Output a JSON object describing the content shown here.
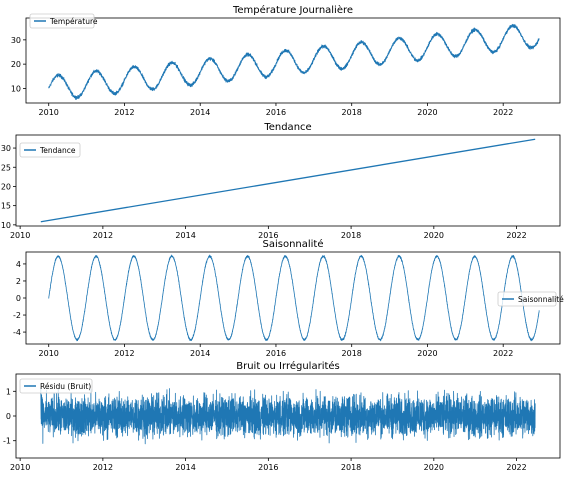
{
  "chart_data": [
    {
      "type": "line",
      "title": "Température Journalière",
      "series": [
        {
          "name": "Température",
          "color": "#1f77b4",
          "components": {
            "trend_start": 10,
            "trend_slope_per_year": 1.7,
            "seasonal_amplitude": 5,
            "noise_amplitude": 1
          },
          "x_range": [
            2010.0,
            2022.95
          ]
        }
      ],
      "xlim": [
        2009.4,
        2023.5
      ],
      "ylim": [
        4,
        39
      ],
      "xticks": [
        2010,
        2012,
        2014,
        2016,
        2018,
        2020,
        2022
      ],
      "yticks": [
        10,
        20,
        30
      ],
      "legend": "upper left",
      "grid": false
    },
    {
      "type": "line",
      "title": "Tendance",
      "series": [
        {
          "name": "Tendance",
          "color": "#1f77b4",
          "x": [
            2010.5,
            2022.45
          ],
          "y": [
            10.8,
            32.3
          ]
        }
      ],
      "xlim": [
        2009.9,
        2023.05
      ],
      "ylim": [
        9.7,
        33.4
      ],
      "xticks": [
        2010,
        2012,
        2014,
        2016,
        2018,
        2020,
        2022
      ],
      "yticks": [
        10,
        15,
        20,
        25,
        30
      ],
      "legend": "upper left",
      "grid": false
    },
    {
      "type": "line",
      "title": "Saisonnalité",
      "series": [
        {
          "name": "Saisonnalité",
          "color": "#1f77b4",
          "amplitude": 4.9,
          "period_years": 1,
          "noise_amplitude": 0.18,
          "x_range": [
            2010.0,
            2022.95
          ]
        }
      ],
      "xlim": [
        2009.4,
        2023.5
      ],
      "ylim": [
        -5.4,
        5.4
      ],
      "xticks": [
        2010,
        2012,
        2014,
        2016,
        2018,
        2020,
        2022
      ],
      "yticks": [
        -4,
        -2,
        0,
        2,
        4
      ],
      "legend": "center right",
      "grid": false
    },
    {
      "type": "line",
      "title": "Bruit ou Irrégularités",
      "series": [
        {
          "name": "Résidu (Bruit)",
          "color": "#1f77b4",
          "noise_amplitude": 1.1,
          "x_range": [
            2010.5,
            2022.45
          ]
        }
      ],
      "xlim": [
        2009.9,
        2023.05
      ],
      "ylim": [
        -1.7,
        1.7
      ],
      "xticks": [
        2010,
        2012,
        2014,
        2016,
        2018,
        2020,
        2022
      ],
      "yticks": [
        -1,
        0,
        1
      ],
      "legend": "upper left",
      "grid": false
    }
  ]
}
